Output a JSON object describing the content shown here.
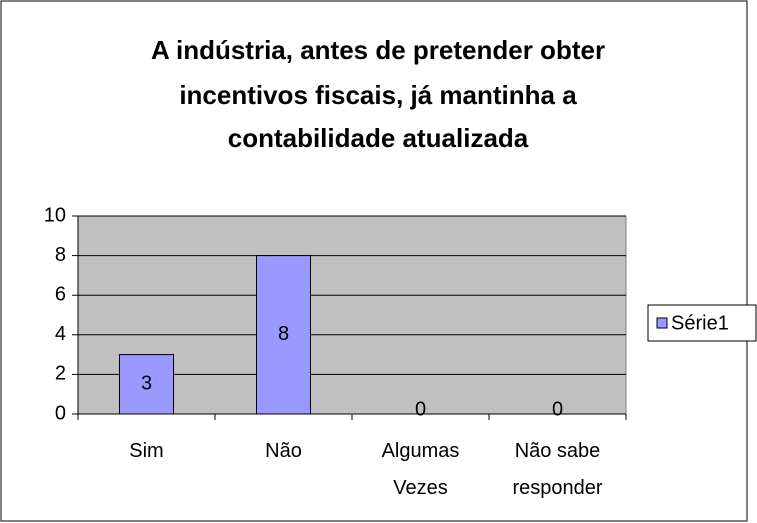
{
  "chart_data": {
    "type": "bar",
    "title": [
      "A indústria, antes de pretender obter",
      "incentivos fiscais, já mantinha a",
      "contabilidade atualizada"
    ],
    "categories": [
      "Sim",
      "Não",
      "Algumas Vezes",
      "Não sabe responder"
    ],
    "series": [
      {
        "name": "Série1",
        "color": "#9999ff",
        "values": [
          3,
          8,
          0,
          0
        ]
      }
    ],
    "ylim": [
      0,
      10
    ],
    "yticks": [
      0,
      2,
      4,
      6,
      8,
      10
    ],
    "grid": true,
    "legend": "right",
    "plot_color": "#c0c0c0"
  }
}
